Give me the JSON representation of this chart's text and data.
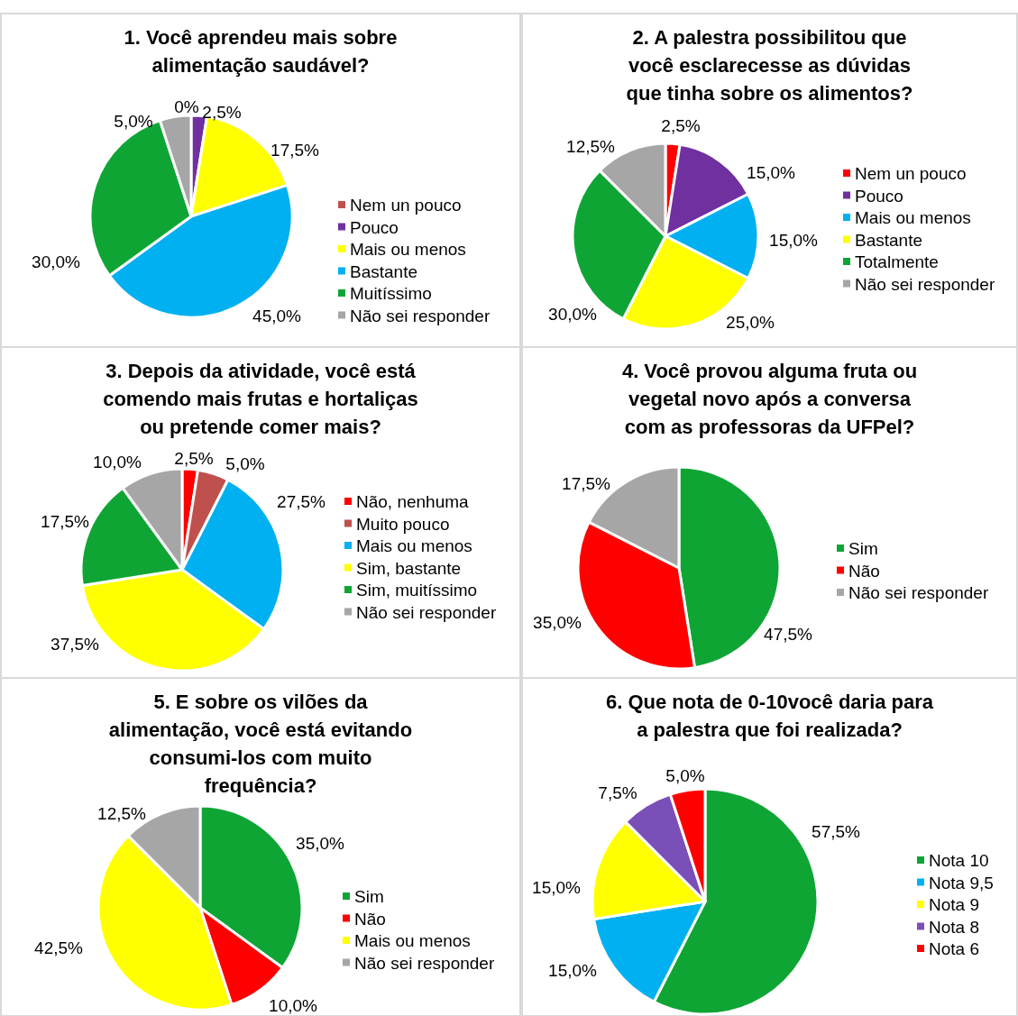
{
  "chart_data": [
    {
      "type": "pie",
      "title": "1. Você aprendeu mais sobre alimentação saudável?",
      "categories": [
        "Nem un pouco",
        "Pouco",
        "Mais ou menos",
        "Bastante",
        "Muitíssimo",
        "Não sei responder"
      ],
      "values": [
        0,
        2.5,
        17.5,
        45,
        30,
        5
      ],
      "colors": [
        "#c0504d",
        "#7030a0",
        "#ffff00",
        "#00b0f0",
        "#0fa535",
        "#a6a6a6"
      ],
      "value_labels": [
        "0%",
        "2,5%",
        "17,5%",
        "45,0%",
        "30,0%",
        "5,0%"
      ],
      "legend": "right"
    },
    {
      "type": "pie",
      "title": "2. A palestra possibilitou que você esclarecesse as dúvidas que tinha sobre os alimentos?",
      "categories": [
        "Nem un pouco",
        "Pouco",
        "Mais ou menos",
        "Bastante",
        "Totalmente",
        "Não sei responder"
      ],
      "values": [
        2.5,
        15,
        15,
        25,
        30,
        12.5
      ],
      "colors": [
        "#ff0000",
        "#7030a0",
        "#00b0f0",
        "#ffff00",
        "#0fa535",
        "#a6a6a6"
      ],
      "value_labels": [
        "2,5%",
        "15,0%",
        "15,0%",
        "25,0%",
        "30,0%",
        "12,5%"
      ],
      "legend": "right"
    },
    {
      "type": "pie",
      "title": "3. Depois da atividade, você está comendo mais frutas e hortaliças ou pretende comer mais?",
      "categories": [
        "Não, nenhuma",
        "Muito pouco",
        "Mais ou menos",
        "Sim, bastante",
        "Sim, muitíssimo",
        "Não sei responder"
      ],
      "values": [
        2.5,
        5,
        27.5,
        37.5,
        17.5,
        10
      ],
      "colors": [
        "#ff0000",
        "#c0504d",
        "#00b0f0",
        "#ffff00",
        "#0fa535",
        "#a6a6a6"
      ],
      "value_labels": [
        "2,5%",
        "5,0%",
        "27,5%",
        "37,5%",
        "17,5%",
        "10,0%"
      ],
      "legend": "right"
    },
    {
      "type": "pie",
      "title": "4. Você provou alguma fruta ou vegetal novo após a conversa com as professoras da UFPel?",
      "categories": [
        "Sim",
        "Não",
        "Não sei responder"
      ],
      "values": [
        47.5,
        35,
        17.5
      ],
      "colors": [
        "#0fa535",
        "#ff0000",
        "#a6a6a6"
      ],
      "value_labels": [
        "47,5%",
        "35,0%",
        "17,5%"
      ],
      "legend": "right"
    },
    {
      "type": "pie",
      "title": "5. E sobre os vilões da alimentação, você está evitando consumi-los com muito frequência?",
      "categories": [
        "Sim",
        "Não",
        "Mais ou menos",
        "Não sei responder"
      ],
      "values": [
        35,
        10,
        42.5,
        12.5
      ],
      "colors": [
        "#0fa535",
        "#ff0000",
        "#ffff00",
        "#a6a6a6"
      ],
      "value_labels": [
        "35,0%",
        "10,0%",
        "42,5%",
        "12,5%"
      ],
      "legend": "right"
    },
    {
      "type": "pie",
      "title": "6. Que nota de 0-10você daria para a palestra que foi realizada?",
      "categories": [
        "Nota 10",
        "Nota 9,5",
        "Nota 9",
        "Nota 8",
        "Nota 6"
      ],
      "values": [
        57.5,
        15,
        15,
        7.5,
        5
      ],
      "colors": [
        "#0fa535",
        "#00b0f0",
        "#ffff00",
        "#7b4fb8",
        "#ff0000"
      ],
      "value_labels": [
        "57,5%",
        "15,0%",
        "15,0%",
        "7,5%",
        "5,0%"
      ],
      "legend": "right"
    }
  ]
}
